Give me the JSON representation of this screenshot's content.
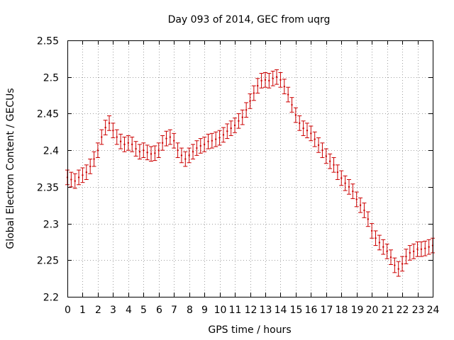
{
  "chart_data": {
    "type": "line",
    "title": "Day 093 of 2014, GEC from uqrg",
    "xlabel": "GPS time / hours",
    "ylabel": "Global Electron Content / GECUs",
    "xlim": [
      0,
      24
    ],
    "ylim": [
      2.2,
      2.55
    ],
    "xticks": [
      0,
      1,
      2,
      3,
      4,
      5,
      6,
      7,
      8,
      9,
      10,
      11,
      12,
      13,
      14,
      15,
      16,
      17,
      18,
      19,
      20,
      21,
      22,
      23,
      24
    ],
    "yticks": [
      2.2,
      2.25,
      2.3,
      2.35,
      2.4,
      2.45,
      2.5,
      2.55
    ],
    "ytick_labels": [
      "2.2",
      "2.25",
      "2.3",
      "2.35",
      "2.4",
      "2.45",
      "2.5",
      "2.55"
    ],
    "grid": true,
    "series": [
      {
        "color": "#cc0000",
        "error": 0.01,
        "x": [
          0,
          0.25,
          0.5,
          0.75,
          1,
          1.25,
          1.5,
          1.75,
          2,
          2.25,
          2.5,
          2.75,
          3,
          3.25,
          3.5,
          3.75,
          4,
          4.25,
          4.5,
          4.75,
          5,
          5.25,
          5.5,
          5.75,
          6,
          6.25,
          6.5,
          6.75,
          7,
          7.25,
          7.5,
          7.75,
          8,
          8.25,
          8.5,
          8.75,
          9,
          9.25,
          9.5,
          9.75,
          10,
          10.25,
          10.5,
          10.75,
          11,
          11.25,
          11.5,
          11.75,
          12,
          12.25,
          12.5,
          12.75,
          13,
          13.25,
          13.5,
          13.75,
          14,
          14.25,
          14.5,
          14.75,
          15,
          15.25,
          15.5,
          15.75,
          16,
          16.25,
          16.5,
          16.75,
          17,
          17.25,
          17.5,
          17.75,
          18,
          18.25,
          18.5,
          18.75,
          19,
          19.25,
          19.5,
          19.75,
          20,
          20.25,
          20.5,
          20.75,
          21,
          21.25,
          21.5,
          21.75,
          22,
          22.25,
          22.5,
          22.75,
          23,
          23.25,
          23.5,
          23.75,
          24
        ],
        "y": [
          2.363,
          2.36,
          2.358,
          2.363,
          2.366,
          2.37,
          2.378,
          2.388,
          2.4,
          2.418,
          2.431,
          2.437,
          2.427,
          2.418,
          2.412,
          2.408,
          2.41,
          2.408,
          2.402,
          2.398,
          2.4,
          2.397,
          2.395,
          2.396,
          2.4,
          2.41,
          2.416,
          2.418,
          2.413,
          2.4,
          2.393,
          2.388,
          2.393,
          2.398,
          2.403,
          2.406,
          2.408,
          2.412,
          2.413,
          2.415,
          2.417,
          2.421,
          2.426,
          2.43,
          2.434,
          2.44,
          2.445,
          2.455,
          2.467,
          2.478,
          2.488,
          2.495,
          2.496,
          2.495,
          2.498,
          2.5,
          2.496,
          2.487,
          2.476,
          2.462,
          2.448,
          2.437,
          2.43,
          2.427,
          2.423,
          2.415,
          2.407,
          2.4,
          2.392,
          2.385,
          2.38,
          2.37,
          2.362,
          2.355,
          2.35,
          2.344,
          2.333,
          2.325,
          2.318,
          2.306,
          2.29,
          2.28,
          2.274,
          2.268,
          2.262,
          2.254,
          2.243,
          2.238,
          2.245,
          2.255,
          2.26,
          2.262,
          2.265,
          2.265,
          2.266,
          2.268,
          2.27
        ]
      }
    ]
  }
}
